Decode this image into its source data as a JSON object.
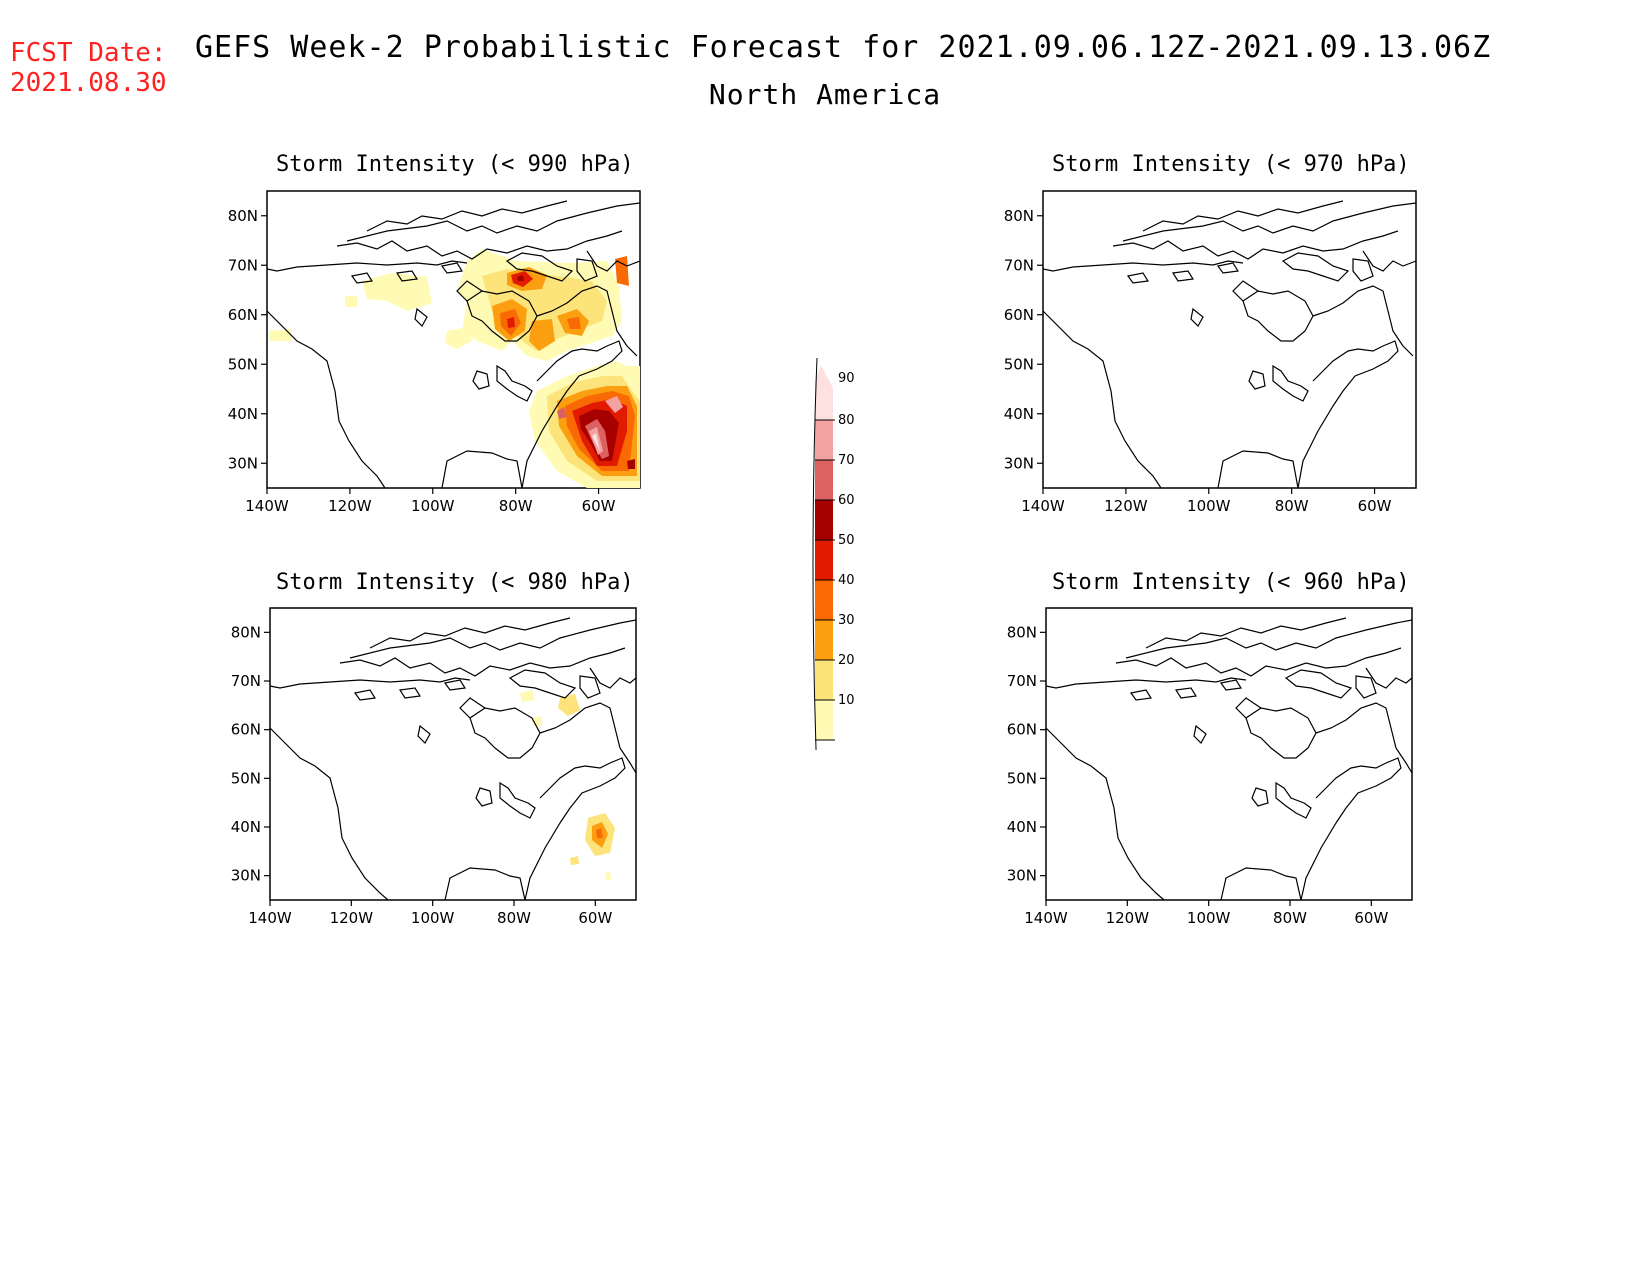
{
  "header": {
    "fcst_label": "FCST Date:",
    "fcst_date": "2021.08.30",
    "title": "GEFS Week-2 Probabilistic Forecast for 2021.09.06.12Z-2021.09.13.06Z",
    "subtitle": "North America"
  },
  "panels": [
    {
      "title": "Storm Intensity (< 990 hPa)"
    },
    {
      "title": "Storm Intensity (< 970 hPa)"
    },
    {
      "title": "Storm Intensity (< 980 hPa)"
    },
    {
      "title": "Storm Intensity (< 960 hPa)"
    }
  ],
  "axes": {
    "lat_labels": [
      "80N",
      "70N",
      "60N",
      "50N",
      "40N",
      "30N"
    ],
    "lon_labels": [
      "140W",
      "120W",
      "100W",
      "80W",
      "60W"
    ],
    "lat_values": [
      80,
      70,
      60,
      50,
      40,
      30
    ],
    "lon_values": [
      -140,
      -120,
      -100,
      -80,
      -60
    ],
    "lat_range": [
      25,
      85
    ],
    "lon_range": [
      -140,
      -50
    ]
  },
  "colorbar": {
    "labels": [
      "10",
      "20",
      "30",
      "40",
      "50",
      "60",
      "70",
      "80",
      "90"
    ],
    "colors": [
      "#fffbb4",
      "#fde47a",
      "#fb9f10",
      "#f96a05",
      "#e21b00",
      "#a70000",
      "#dc6262",
      "#f3a2a2",
      "#fde1e1"
    ]
  }
}
